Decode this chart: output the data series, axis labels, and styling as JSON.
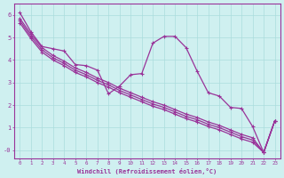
{
  "background_color": "#cff0f0",
  "grid_color": "#aadddd",
  "line_color": "#993399",
  "xlabel": "Windchill (Refroidissement éolien,°C)",
  "xlabel_color": "#993399",
  "tick_color": "#993399",
  "xlim": [
    -0.5,
    23.5
  ],
  "ylim": [
    -0.35,
    6.5
  ],
  "xticks": [
    0,
    1,
    2,
    3,
    4,
    5,
    6,
    7,
    8,
    9,
    10,
    11,
    12,
    13,
    14,
    15,
    16,
    17,
    18,
    19,
    20,
    21,
    22,
    23
  ],
  "yticks": [
    0,
    1,
    2,
    3,
    4,
    5,
    6
  ],
  "ytick_labels": [
    "-0",
    "1",
    "2",
    "3",
    "4",
    "5",
    "6"
  ],
  "line1_x": [
    0,
    1,
    2,
    3,
    4,
    5,
    6,
    7,
    8,
    9,
    10,
    11,
    12,
    13,
    14,
    15,
    16,
    17,
    18,
    19,
    20,
    21,
    22,
    23
  ],
  "line1_y": [
    6.1,
    5.25,
    4.6,
    4.5,
    4.4,
    3.8,
    3.75,
    3.55,
    2.5,
    2.85,
    3.35,
    3.4,
    4.75,
    5.05,
    5.05,
    4.55,
    3.5,
    2.55,
    2.4,
    1.9,
    1.85,
    1.05,
    -0.1,
    1.3
  ],
  "line2_x": [
    0,
    1,
    2,
    3,
    4,
    5,
    6,
    7,
    8,
    9,
    10,
    11,
    12,
    13,
    14,
    15,
    16,
    17,
    18,
    19,
    20,
    21,
    22,
    23
  ],
  "line2_y": [
    5.85,
    5.15,
    4.55,
    4.2,
    3.95,
    3.65,
    3.45,
    3.2,
    3.0,
    2.75,
    2.55,
    2.35,
    2.15,
    2.0,
    1.8,
    1.6,
    1.45,
    1.25,
    1.1,
    0.9,
    0.7,
    0.55,
    -0.1,
    1.3
  ],
  "line3_x": [
    0,
    1,
    2,
    3,
    4,
    5,
    6,
    7,
    8,
    9,
    10,
    11,
    12,
    13,
    14,
    15,
    16,
    17,
    18,
    19,
    20,
    21,
    22,
    23
  ],
  "line3_y": [
    5.75,
    5.05,
    4.45,
    4.1,
    3.85,
    3.55,
    3.35,
    3.1,
    2.9,
    2.65,
    2.45,
    2.25,
    2.05,
    1.9,
    1.7,
    1.5,
    1.35,
    1.15,
    1.0,
    0.8,
    0.6,
    0.45,
    -0.1,
    1.3
  ],
  "line4_x": [
    0,
    1,
    2,
    3,
    4,
    5,
    6,
    7,
    8,
    9,
    10,
    11,
    12,
    13,
    14,
    15,
    16,
    17,
    18,
    19,
    20,
    21,
    22,
    23
  ],
  "line4_y": [
    5.65,
    4.95,
    4.35,
    4.0,
    3.75,
    3.45,
    3.25,
    3.0,
    2.8,
    2.55,
    2.35,
    2.15,
    1.95,
    1.8,
    1.6,
    1.4,
    1.25,
    1.05,
    0.9,
    0.7,
    0.5,
    0.35,
    -0.1,
    1.3
  ]
}
